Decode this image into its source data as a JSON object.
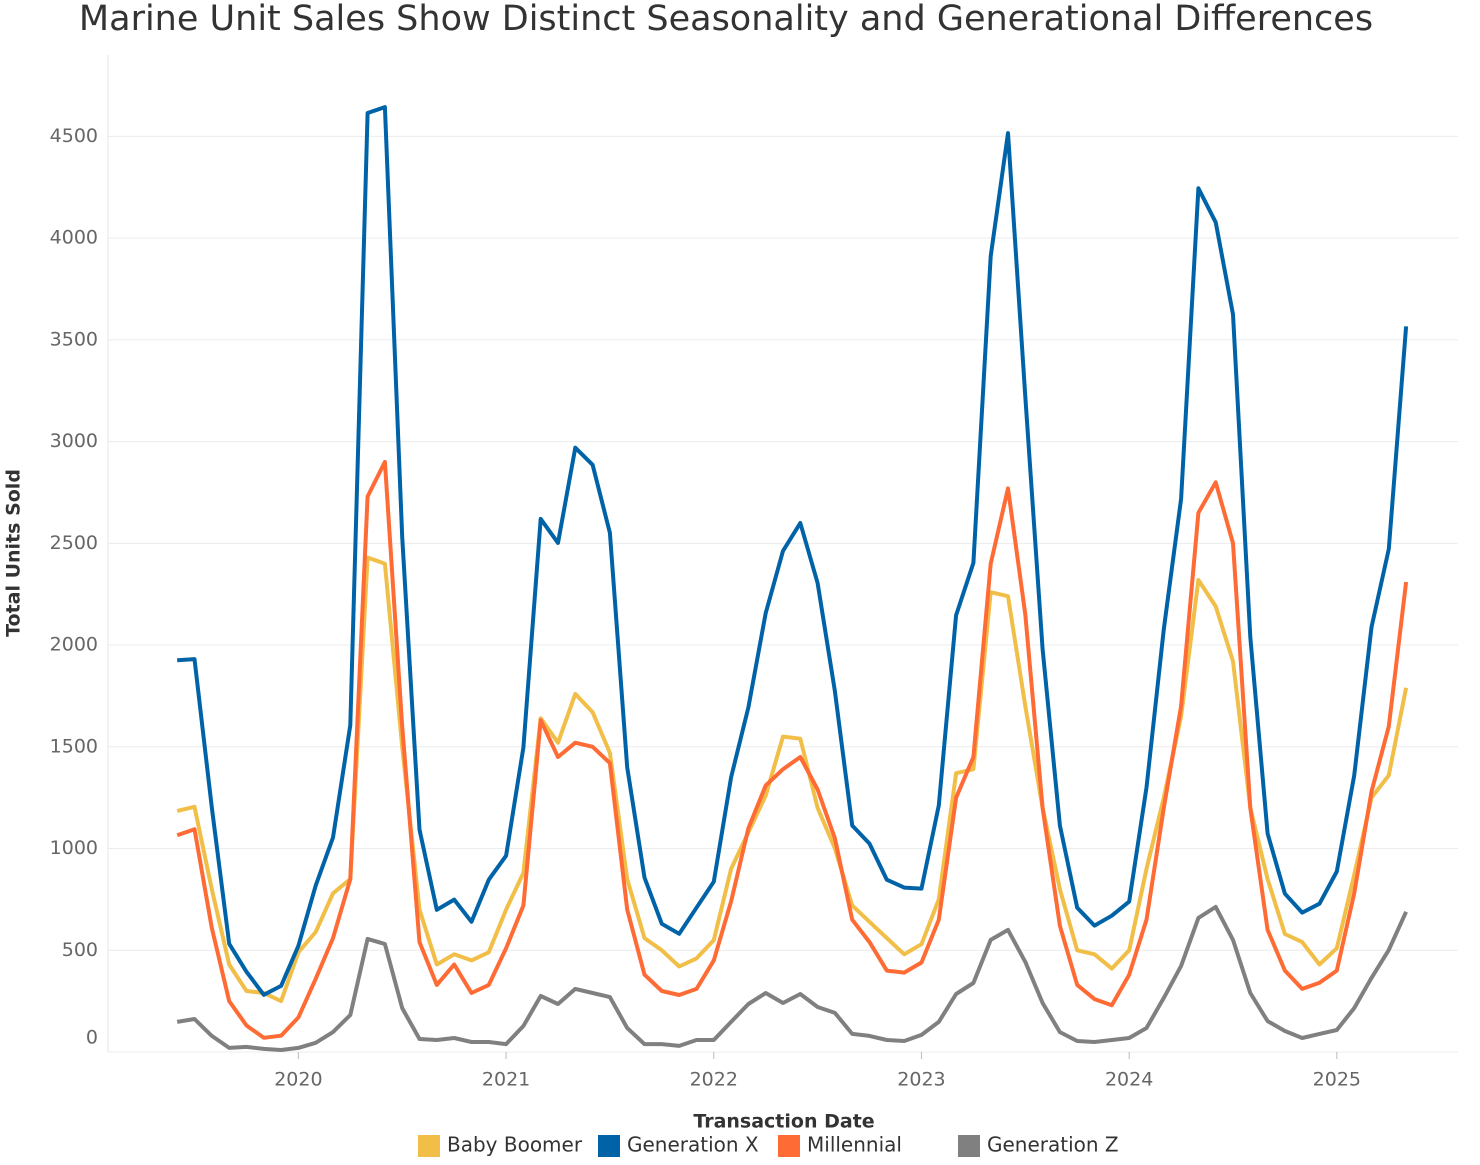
{
  "chart_data": {
    "type": "line",
    "title": "Marine Unit Sales Show Distinct Seasonality and Generational Differences",
    "x_label": "Transaction Date",
    "y_label": "Total Units Sold",
    "x": [
      "2019-06",
      "2019-07",
      "2019-08",
      "2019-09",
      "2019-10",
      "2019-11",
      "2019-12",
      "2020-01",
      "2020-02",
      "2020-03",
      "2020-04",
      "2020-05",
      "2020-06",
      "2020-07",
      "2020-08",
      "2020-09",
      "2020-10",
      "2020-11",
      "2020-12",
      "2021-01",
      "2021-02",
      "2021-03",
      "2021-04",
      "2021-05",
      "2021-06",
      "2021-07",
      "2021-08",
      "2021-09",
      "2021-10",
      "2021-11",
      "2021-12",
      "2022-01",
      "2022-02",
      "2022-03",
      "2022-04",
      "2022-05",
      "2022-06",
      "2022-07",
      "2022-08",
      "2022-09",
      "2022-10",
      "2022-11",
      "2022-12",
      "2023-01",
      "2023-02",
      "2023-03",
      "2023-04",
      "2023-05",
      "2023-06",
      "2023-07",
      "2023-08",
      "2023-09",
      "2023-10",
      "2023-11",
      "2023-12",
      "2024-01",
      "2024-02",
      "2024-03",
      "2024-04",
      "2024-05",
      "2024-06",
      "2024-07",
      "2024-08",
      "2024-09",
      "2024-10",
      "2024-11",
      "2024-12",
      "2025-01",
      "2025-02",
      "2025-03",
      "2025-04",
      "2025-05"
    ],
    "series": [
      {
        "name": "Baby Boomer",
        "color": "#F1BE48",
        "values": [
          1185,
          1205,
          800,
          430,
          300,
          290,
          250,
          490,
          590,
          780,
          850,
          2430,
          2400,
          1500,
          700,
          430,
          480,
          450,
          490,
          700,
          880,
          1640,
          1520,
          1760,
          1670,
          1470,
          850,
          560,
          500,
          420,
          460,
          550,
          900,
          1080,
          1260,
          1550,
          1540,
          1200,
          1000,
          720,
          640,
          560,
          480,
          530,
          750,
          1370,
          1390,
          2260,
          2240,
          1700,
          1200,
          800,
          500,
          480,
          410,
          500,
          900,
          1250,
          1650,
          2320,
          2190,
          1920,
          1200,
          850,
          580,
          540,
          430,
          510,
          870,
          1250,
          1360,
          1790
        ]
      },
      {
        "name": "Generation X",
        "color": "#0063A8",
        "values": [
          1925,
          1931,
          1202,
          532,
          394,
          281,
          325,
          522,
          818,
          1054,
          1606,
          4615,
          4644,
          2531,
          1093,
          699,
          749,
          640,
          847,
          965,
          1497,
          2620,
          2502,
          2970,
          2886,
          2551,
          1399,
          857,
          630,
          581,
          709,
          837,
          1350,
          1694,
          2157,
          2463,
          2600,
          2305,
          1773,
          1113,
          1024,
          847,
          808,
          803,
          1212,
          2147,
          2404,
          3911,
          4516,
          3221,
          1980,
          1113,
          709,
          621,
          670,
          739,
          1300,
          2078,
          2719,
          4245,
          4078,
          3625,
          2039,
          1074,
          778,
          685,
          729,
          887,
          1359,
          2088,
          2472,
          3566
        ]
      },
      {
        "name": "Millennial",
        "color": "#FF6B35",
        "values": [
          1065,
          1095,
          610,
          250,
          130,
          70,
          80,
          170,
          360,
          560,
          850,
          2730,
          2900,
          1600,
          540,
          330,
          430,
          290,
          330,
          510,
          720,
          1630,
          1450,
          1520,
          1500,
          1420,
          700,
          380,
          300,
          280,
          310,
          450,
          740,
          1100,
          1310,
          1390,
          1450,
          1290,
          1050,
          650,
          540,
          400,
          390,
          440,
          650,
          1250,
          1450,
          2400,
          2770,
          2150,
          1200,
          620,
          330,
          260,
          230,
          380,
          650,
          1200,
          1700,
          2650,
          2800,
          2500,
          1200,
          600,
          400,
          310,
          340,
          400,
          780,
          1280,
          1600,
          2310
        ]
      },
      {
        "name": "Generation Z",
        "color": "#808080",
        "values": [
          148,
          162,
          79,
          20,
          25,
          15,
          10,
          20,
          45,
          98,
          182,
          556,
          531,
          216,
          64,
          59,
          69,
          49,
          49,
          39,
          128,
          275,
          236,
          310,
          290,
          270,
          118,
          39,
          39,
          30,
          59,
          59,
          148,
          236,
          290,
          241,
          285,
          221,
          192,
          89,
          79,
          59,
          54,
          84,
          148,
          285,
          339,
          551,
          600,
          443,
          241,
          98,
          54,
          49,
          59,
          69,
          118,
          266,
          423,
          659,
          713,
          551,
          290,
          152,
          103,
          69,
          89,
          108,
          216,
          364,
          502,
          689
        ]
      }
    ],
    "xlim": [
      "2019-02",
      "2025-08"
    ],
    "xticks": [
      2020,
      2021,
      2022,
      2023,
      2024,
      2025
    ],
    "ylim": [
      0,
      4900
    ],
    "yticks": [
      0,
      500,
      1000,
      1500,
      2000,
      2500,
      3000,
      3500,
      4000,
      4500
    ],
    "grid": true,
    "legend": "bottom"
  }
}
